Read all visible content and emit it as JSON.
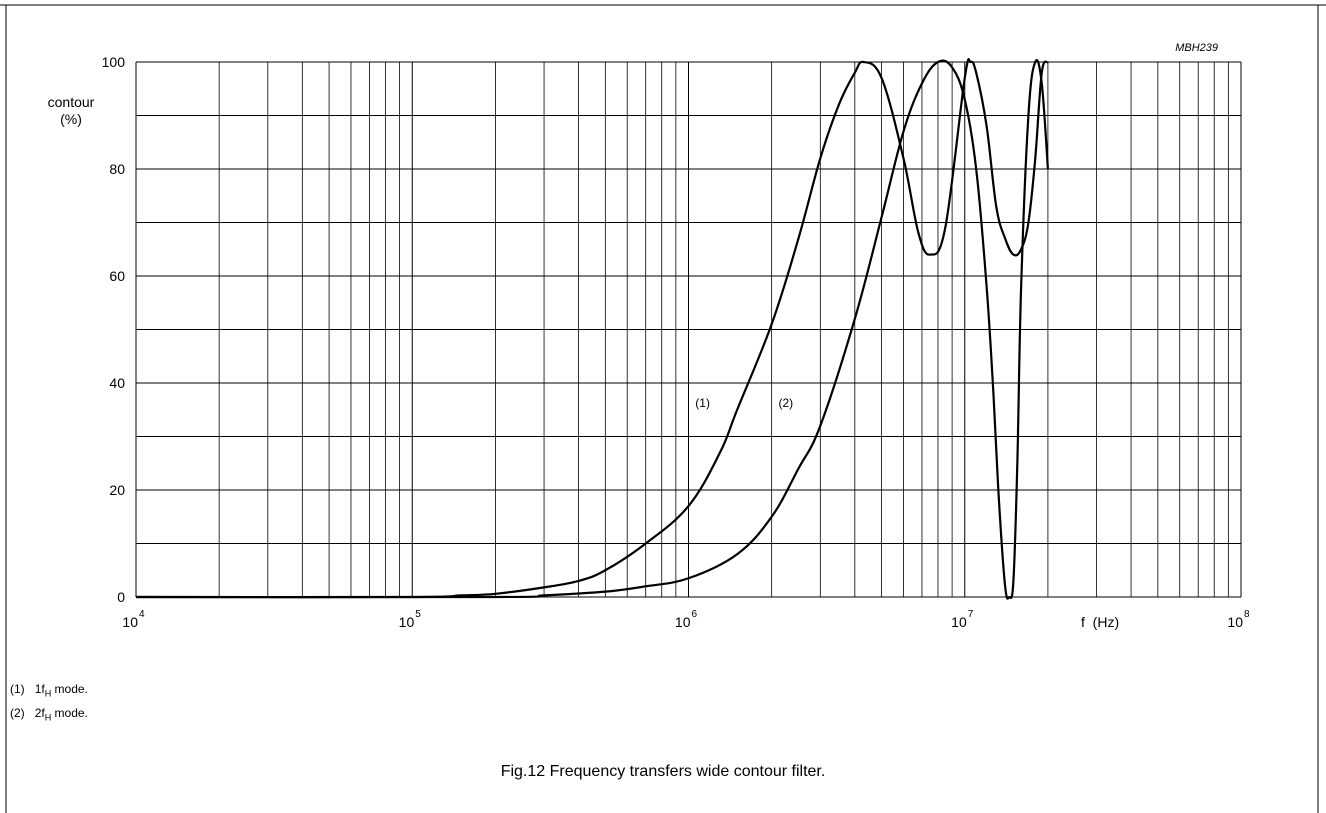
{
  "figure_id": "MBH239",
  "chart_data": {
    "type": "line",
    "xscale": "log",
    "xlim": [
      10000,
      100000000
    ],
    "ylim": [
      0,
      100
    ],
    "ylabel": [
      "contour",
      "(%)"
    ],
    "xlabel": "f  (Hz)",
    "y_ticks": [
      0,
      20,
      40,
      60,
      80,
      100
    ],
    "x_tick_labels": [
      {
        "base": "10",
        "exp": "4",
        "value": 10000
      },
      {
        "base": "10",
        "exp": "5",
        "value": 100000
      },
      {
        "base": "10",
        "exp": "6",
        "value": 1000000
      },
      {
        "base": "10",
        "exp": "7",
        "value": 10000000
      },
      {
        "base": "10",
        "exp": "8",
        "value": 100000000
      }
    ],
    "grid": true,
    "series": [
      {
        "name": "(1)",
        "x": [
          10000,
          100000,
          150000,
          200000,
          300000,
          400000,
          500000,
          700000,
          1000000,
          1300000,
          1500000,
          2000000,
          2500000,
          3000000,
          3500000,
          4000000,
          4300000,
          5000000,
          6000000,
          6800000,
          7500000,
          8500000,
          10000000,
          10500000,
          11000000,
          12000000,
          13000000,
          14000000,
          15000000,
          16000000,
          17000000,
          18000000,
          19000000,
          20000000
        ],
        "y": [
          0,
          0,
          0.3,
          0.6,
          1.8,
          3,
          5,
          10,
          17,
          27,
          35,
          51,
          67,
          82,
          92,
          98,
          100,
          97,
          82,
          68,
          64,
          69,
          97,
          100,
          98,
          88,
          73,
          67,
          64,
          65,
          70,
          82,
          98,
          100
        ]
      },
      {
        "name": "(2)",
        "x": [
          10000,
          200000,
          300000,
          500000,
          700000,
          1000000,
          1500000,
          2000000,
          2500000,
          3000000,
          4000000,
          5000000,
          6000000,
          7000000,
          8000000,
          9000000,
          10000000,
          11000000,
          12000000,
          12700000,
          13300000,
          14000000,
          14500000,
          15000000,
          15500000,
          16000000,
          17000000,
          18000000,
          19000000,
          20000000
        ],
        "y": [
          0,
          0,
          0.3,
          1,
          2,
          3.5,
          8,
          15,
          24,
          32,
          52,
          71,
          87,
          96,
          100,
          99,
          93,
          80,
          58,
          38,
          18,
          2,
          0,
          3,
          25,
          58,
          90,
          100,
          96,
          80
        ]
      }
    ],
    "annotations": [
      {
        "text": "(1)",
        "x": 1300000,
        "y": 35
      },
      {
        "text": "(2)",
        "x": 2600000,
        "y": 35
      }
    ]
  },
  "legend": [
    {
      "num": "(1)",
      "prefix": "1f",
      "sub": "H",
      "suffix": " mode."
    },
    {
      "num": "(2)",
      "prefix": "2f",
      "sub": "H",
      "suffix": " mode."
    }
  ],
  "caption": "Fig.12  Frequency transfers wide contour filter."
}
